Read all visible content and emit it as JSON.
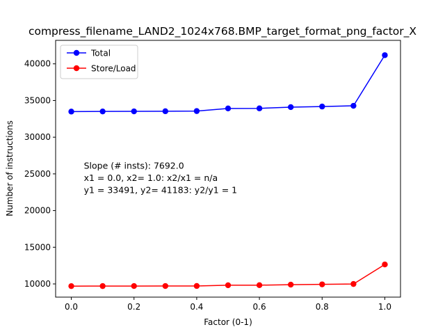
{
  "chart_data": {
    "type": "line",
    "title": "compress_filename_LAND2_1024x768.BMP_target_format_png_factor_X",
    "xlabel": "Factor (0-1)",
    "ylabel": "Number of instructions",
    "x": [
      0.0,
      0.1,
      0.2,
      0.3,
      0.4,
      0.5,
      0.6,
      0.7,
      0.8,
      0.9,
      1.0
    ],
    "xlim": [
      -0.05,
      1.05
    ],
    "ylim": [
      8200,
      43200
    ],
    "xticks": [
      0.0,
      0.2,
      0.4,
      0.6,
      0.8,
      1.0
    ],
    "xtick_labels": [
      "0.0",
      "0.2",
      "0.4",
      "0.6",
      "0.8",
      "1.0"
    ],
    "yticks": [
      10000,
      15000,
      20000,
      25000,
      30000,
      35000,
      40000
    ],
    "ytick_labels": [
      "10000",
      "15000",
      "20000",
      "25000",
      "30000",
      "35000",
      "40000"
    ],
    "grid": false,
    "legend_position": "top-left",
    "series": [
      {
        "name": "Total",
        "color": "#0000ff",
        "marker": "circle",
        "values": [
          33491,
          33510,
          33520,
          33540,
          33560,
          33920,
          33930,
          34100,
          34180,
          34280,
          41183
        ]
      },
      {
        "name": "Store/Load",
        "color": "#ff0000",
        "marker": "circle",
        "values": [
          9700,
          9705,
          9710,
          9715,
          9720,
          9820,
          9830,
          9900,
          9940,
          9990,
          12650
        ]
      }
    ],
    "annotation": {
      "lines": [
        "Slope (# insts): 7692.0",
        "x1 = 0.0, x2= 1.0: x2/x1 = n/a",
        "y1 = 33491, y2= 41183: y2/y1 = 1"
      ],
      "x": 0.04,
      "y": 25500
    }
  }
}
